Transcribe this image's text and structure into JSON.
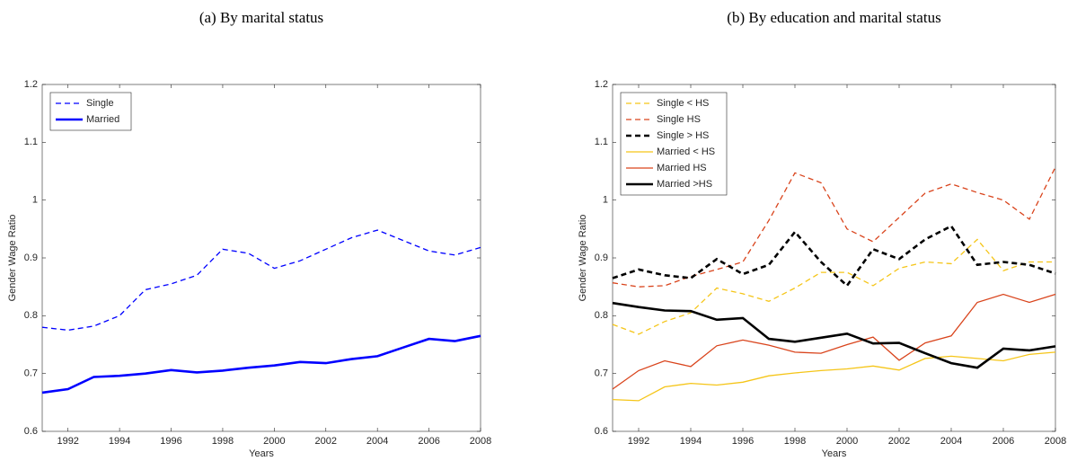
{
  "chart_data": [
    {
      "type": "line",
      "title": "(a) By marital status",
      "xlabel": "Years",
      "ylabel": "Gender Wage Ratio",
      "x": [
        1991,
        1992,
        1993,
        1994,
        1995,
        1996,
        1997,
        1998,
        1999,
        2000,
        2001,
        2002,
        2003,
        2004,
        2005,
        2006,
        2007,
        2008
      ],
      "xlim": [
        1991,
        2008
      ],
      "xticks": [
        1992,
        1994,
        1996,
        1998,
        2000,
        2002,
        2004,
        2006,
        2008
      ],
      "ylim": [
        0.6,
        1.2
      ],
      "yticks": [
        0.6,
        0.7,
        0.8,
        0.9,
        1,
        1.1,
        1.2
      ],
      "legend": "upper left",
      "series": [
        {
          "name": "Single",
          "color": "#0000ff",
          "linestyle": "dashed",
          "linewidth": 1.3,
          "values": [
            0.78,
            0.775,
            0.782,
            0.8,
            0.845,
            0.855,
            0.87,
            0.915,
            0.908,
            0.882,
            0.895,
            0.915,
            0.935,
            0.948,
            0.93,
            0.912,
            0.905,
            0.918
          ]
        },
        {
          "name": "Married",
          "color": "#0000ff",
          "linestyle": "solid",
          "linewidth": 2.6,
          "values": [
            0.667,
            0.673,
            0.694,
            0.696,
            0.7,
            0.706,
            0.702,
            0.705,
            0.71,
            0.714,
            0.72,
            0.718,
            0.725,
            0.73,
            0.745,
            0.76,
            0.756,
            0.765
          ]
        }
      ]
    },
    {
      "type": "line",
      "title": "(b) By education and marital status",
      "xlabel": "Years",
      "ylabel": "Gender Wage Ratio",
      "x": [
        1991,
        1992,
        1993,
        1994,
        1995,
        1996,
        1997,
        1998,
        1999,
        2000,
        2001,
        2002,
        2003,
        2004,
        2005,
        2006,
        2007,
        2008
      ],
      "xlim": [
        1991,
        2008
      ],
      "xticks": [
        1992,
        1994,
        1996,
        1998,
        2000,
        2002,
        2004,
        2006,
        2008
      ],
      "ylim": [
        0.6,
        1.2
      ],
      "yticks": [
        0.6,
        0.7,
        0.8,
        0.9,
        1,
        1.1,
        1.2
      ],
      "legend": "upper left",
      "series": [
        {
          "name": "Single < HS",
          "color": "#f5c518",
          "linestyle": "dashed",
          "linewidth": 1.3,
          "values": [
            0.785,
            0.768,
            0.79,
            0.805,
            0.848,
            0.838,
            0.825,
            0.848,
            0.875,
            0.875,
            0.852,
            0.882,
            0.893,
            0.89,
            0.932,
            0.878,
            0.893,
            0.893
          ]
        },
        {
          "name": "Single HS",
          "color": "#d9441c",
          "linestyle": "dashed",
          "linewidth": 1.3,
          "values": [
            0.857,
            0.85,
            0.852,
            0.868,
            0.88,
            0.893,
            0.965,
            1.047,
            1.03,
            0.95,
            0.928,
            0.97,
            1.012,
            1.028,
            1.013,
            1.0,
            0.967,
            1.057
          ]
        },
        {
          "name": "Single > HS",
          "color": "#000000",
          "linestyle": "dashed",
          "linewidth": 2.6,
          "values": [
            0.865,
            0.88,
            0.87,
            0.865,
            0.898,
            0.872,
            0.888,
            0.945,
            0.893,
            0.852,
            0.915,
            0.898,
            0.932,
            0.955,
            0.888,
            0.893,
            0.888,
            0.873
          ]
        },
        {
          "name": "Married < HS",
          "color": "#f5c518",
          "linestyle": "solid",
          "linewidth": 1.3,
          "values": [
            0.655,
            0.653,
            0.677,
            0.683,
            0.68,
            0.685,
            0.696,
            0.701,
            0.705,
            0.708,
            0.713,
            0.706,
            0.726,
            0.73,
            0.726,
            0.722,
            0.733,
            0.737
          ]
        },
        {
          "name": "Married HS",
          "color": "#d9441c",
          "linestyle": "solid",
          "linewidth": 1.3,
          "values": [
            0.673,
            0.705,
            0.722,
            0.712,
            0.748,
            0.758,
            0.749,
            0.737,
            0.735,
            0.75,
            0.763,
            0.723,
            0.753,
            0.765,
            0.823,
            0.837,
            0.823,
            0.837
          ]
        },
        {
          "name": "Married >HS",
          "color": "#000000",
          "linestyle": "solid",
          "linewidth": 2.6,
          "values": [
            0.822,
            0.815,
            0.809,
            0.808,
            0.793,
            0.796,
            0.76,
            0.755,
            0.762,
            0.769,
            0.752,
            0.753,
            0.735,
            0.718,
            0.71,
            0.743,
            0.74,
            0.747
          ]
        }
      ]
    }
  ]
}
